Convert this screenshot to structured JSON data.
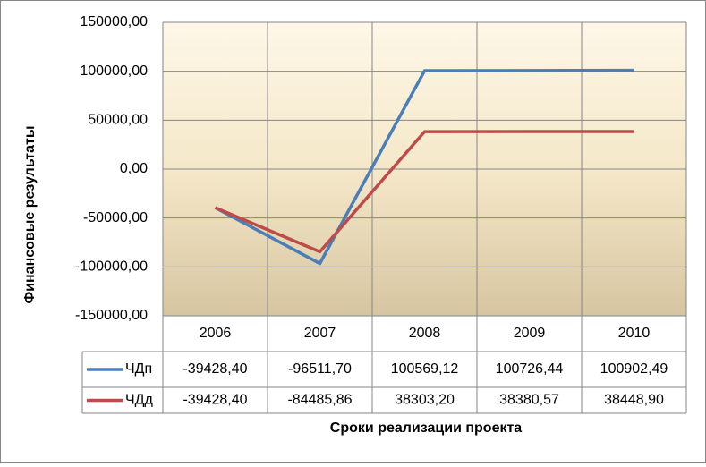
{
  "chart_data": {
    "type": "line",
    "y_label": "Финансовые результаты",
    "x_label": "Сроки реализации проекта",
    "categories": [
      "2006",
      "2007",
      "2008",
      "2009",
      "2010"
    ],
    "series": [
      {
        "name": "ЧДп",
        "color": "#4a7ebb",
        "values": [
          -39428.4,
          -96511.7,
          100569.12,
          100726.44,
          100902.49
        ],
        "value_labels": [
          "-39428,40",
          "-96511,70",
          "100569,12",
          "100726,44",
          "100902,49"
        ]
      },
      {
        "name": "ЧДд",
        "color": "#be4b48",
        "values": [
          -39428.4,
          -84485.86,
          38303.2,
          38380.57,
          38448.9
        ],
        "value_labels": [
          "-39428,40",
          "-84485,86",
          "38303,20",
          "38380,57",
          "38448,90"
        ]
      }
    ],
    "ylim": [
      -150000,
      150000
    ],
    "yticks": [
      {
        "value": -150000,
        "label": "-150000,00"
      },
      {
        "value": -100000,
        "label": "-100000,00"
      },
      {
        "value": -50000,
        "label": "-50000,00"
      },
      {
        "value": 0,
        "label": "0,00"
      },
      {
        "value": 50000,
        "label": "50000,00"
      },
      {
        "value": 100000,
        "label": "100000,00"
      },
      {
        "value": 150000,
        "label": "150000,00"
      }
    ],
    "grid": true
  }
}
